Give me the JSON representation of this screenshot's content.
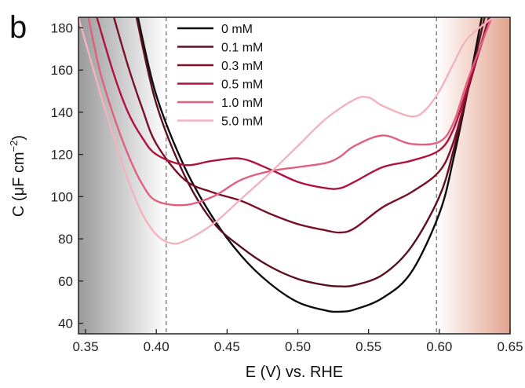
{
  "chart_data": {
    "type": "line",
    "panel_label": "b",
    "xlabel": "E (V) vs. RHE",
    "ylabel_main": "C (μF cm",
    "ylabel_sup": "−2",
    "ylabel_end": ")",
    "xlim": [
      0.345,
      0.65
    ],
    "ylim": [
      35,
      185
    ],
    "xticks": [
      0.35,
      0.4,
      0.45,
      0.5,
      0.55,
      0.6,
      0.65
    ],
    "xtick_labels": [
      "0.35",
      "0.40",
      "0.45",
      "0.50",
      "0.55",
      "0.60",
      "0.65"
    ],
    "yticks": [
      40,
      60,
      80,
      100,
      120,
      140,
      160,
      180
    ],
    "ytick_labels": [
      "40",
      "60",
      "80",
      "100",
      "120",
      "140",
      "160",
      "180"
    ],
    "vlines": [
      0.407,
      0.598
    ],
    "shaded_regions": [
      {
        "from": 0.345,
        "to": 0.407,
        "color_from": "#9a9a9a",
        "color_to": "#ffffff"
      },
      {
        "from": 0.598,
        "to": 0.65,
        "color_from": "#ffffff",
        "color_to": "#e3a48f"
      }
    ],
    "legend_position": "top-center",
    "series": [
      {
        "name": "0 mM",
        "color": "#0d0d0d",
        "x": [
          0.387,
          0.4,
          0.42,
          0.44,
          0.46,
          0.48,
          0.5,
          0.52,
          0.53,
          0.54,
          0.56,
          0.58,
          0.6,
          0.61,
          0.62,
          0.63
        ],
        "y": [
          185,
          148,
          114,
          90,
          72,
          59,
          50,
          46,
          45.5,
          46.5,
          52,
          64,
          92,
          118,
          150,
          185
        ]
      },
      {
        "name": "0.1 mM",
        "color": "#5a1020",
        "x": [
          0.386,
          0.4,
          0.42,
          0.44,
          0.46,
          0.48,
          0.5,
          0.52,
          0.53,
          0.54,
          0.56,
          0.58,
          0.6,
          0.61,
          0.62,
          0.632
        ],
        "y": [
          185,
          144,
          110,
          88,
          76,
          67,
          61,
          58,
          57.5,
          58,
          63,
          76,
          100,
          122,
          150,
          185
        ]
      },
      {
        "name": "0.3 mM",
        "color": "#7a1028",
        "x": [
          0.37,
          0.38,
          0.39,
          0.4,
          0.42,
          0.44,
          0.46,
          0.48,
          0.5,
          0.52,
          0.53,
          0.54,
          0.56,
          0.58,
          0.6,
          0.61,
          0.62,
          0.635
        ],
        "y": [
          185,
          162,
          142,
          125,
          108,
          102,
          98,
          92,
          87,
          84,
          83,
          85,
          95,
          102,
          112,
          126,
          150,
          185
        ]
      },
      {
        "name": "0.5 mM",
        "color": "#b0123e",
        "x": [
          0.358,
          0.37,
          0.38,
          0.39,
          0.4,
          0.42,
          0.44,
          0.46,
          0.48,
          0.5,
          0.52,
          0.53,
          0.54,
          0.56,
          0.58,
          0.6,
          0.61,
          0.62,
          0.636
        ],
        "y": [
          185,
          158,
          140,
          128,
          120,
          115,
          117,
          118,
          113,
          107,
          104,
          104,
          107,
          114,
          117,
          122,
          132,
          152,
          185
        ]
      },
      {
        "name": "1.0 mM",
        "color": "#e0607e",
        "x": [
          0.352,
          0.36,
          0.37,
          0.38,
          0.39,
          0.4,
          0.42,
          0.44,
          0.46,
          0.48,
          0.5,
          0.52,
          0.53,
          0.54,
          0.56,
          0.58,
          0.6,
          0.61,
          0.62,
          0.637
        ],
        "y": [
          185,
          160,
          138,
          120,
          106,
          98,
          96,
          100,
          108,
          112,
          114,
          116,
          119,
          124,
          129,
          125,
          126,
          135,
          155,
          185
        ]
      },
      {
        "name": "5.0 mM",
        "color": "#f2b3bf",
        "x": [
          0.345,
          0.36,
          0.37,
          0.38,
          0.39,
          0.4,
          0.41,
          0.42,
          0.44,
          0.46,
          0.48,
          0.5,
          0.52,
          0.54,
          0.55,
          0.56,
          0.58,
          0.59,
          0.6,
          0.61,
          0.62,
          0.638
        ],
        "y": [
          185,
          150,
          128,
          108,
          92,
          82,
          78,
          79,
          87,
          99,
          111,
          124,
          137,
          146,
          147,
          143,
          138,
          141,
          150,
          163,
          175,
          185
        ]
      }
    ]
  }
}
